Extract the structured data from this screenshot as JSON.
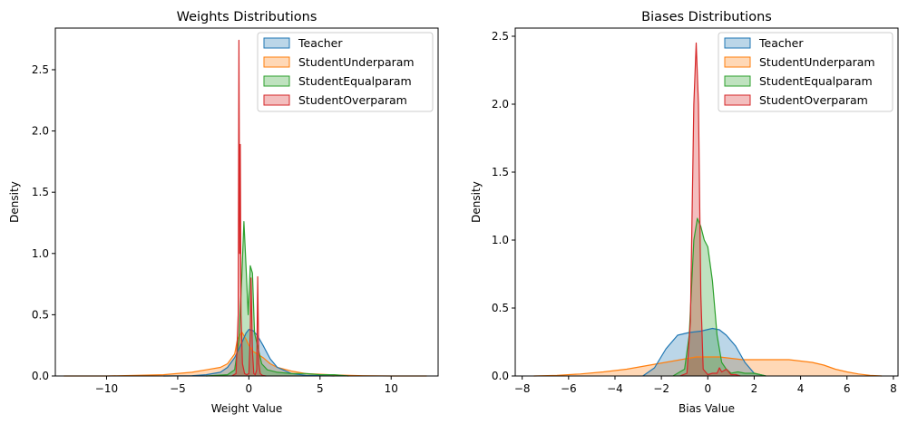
{
  "chart_data": [
    {
      "type": "area",
      "title": "Weights Distributions",
      "xlabel": "Weight Value",
      "ylabel": "Density",
      "xlim": [
        -13.6,
        13.3
      ],
      "ylim": [
        0,
        2.84
      ],
      "xticks": [
        -10,
        -5,
        0,
        5,
        10
      ],
      "yticks": [
        0.0,
        0.5,
        1.0,
        1.5,
        2.0,
        2.5
      ],
      "xtick_labels": [
        "−10",
        "−5",
        "0",
        "5",
        "10"
      ],
      "ytick_labels": [
        "0.0",
        "0.5",
        "1.0",
        "1.5",
        "2.0",
        "2.5"
      ],
      "grid": false,
      "legend_position": "top-right",
      "series": [
        {
          "name": "StudentUnderparam",
          "color": "#ff7f0e",
          "x": [
            -13.0,
            -10.0,
            -8.0,
            -6.0,
            -4.0,
            -3.0,
            -2.0,
            -1.5,
            -1.0,
            -0.8,
            -0.5,
            -0.2,
            0.0,
            0.3,
            0.6,
            1.0,
            1.5,
            2.0,
            3.0,
            4.0,
            6.0,
            8.0,
            10.0,
            12.5
          ],
          "y": [
            0.0,
            0.0,
            0.005,
            0.01,
            0.03,
            0.05,
            0.07,
            0.1,
            0.18,
            0.3,
            0.36,
            0.3,
            0.25,
            0.2,
            0.18,
            0.15,
            0.1,
            0.07,
            0.04,
            0.02,
            0.008,
            0.002,
            0.0,
            0.0
          ]
        },
        {
          "name": "Teacher",
          "color": "#1f77b4",
          "x": [
            -6.0,
            -4.0,
            -3.0,
            -2.0,
            -1.5,
            -1.0,
            -0.5,
            -0.2,
            0.0,
            0.3,
            0.6,
            1.0,
            1.5,
            2.0,
            3.0,
            4.0,
            6.0
          ],
          "y": [
            0.0,
            0.002,
            0.01,
            0.03,
            0.07,
            0.15,
            0.27,
            0.35,
            0.38,
            0.37,
            0.33,
            0.25,
            0.14,
            0.07,
            0.02,
            0.005,
            0.0
          ]
        },
        {
          "name": "StudentEqualparam",
          "color": "#2ca02c",
          "x": [
            -3.0,
            -1.5,
            -1.0,
            -0.7,
            -0.5,
            -0.35,
            -0.2,
            -0.05,
            0.1,
            0.25,
            0.4,
            0.6,
            0.9,
            1.3,
            2.0,
            3.0,
            4.0,
            5.0,
            6.0,
            7.0
          ],
          "y": [
            0.0,
            0.01,
            0.05,
            0.3,
            0.8,
            1.26,
            0.9,
            0.5,
            0.9,
            0.84,
            0.35,
            0.25,
            0.1,
            0.05,
            0.03,
            0.02,
            0.02,
            0.01,
            0.01,
            0.0
          ],
          "opacity": 0.3
        },
        {
          "name": "StudentOverparam",
          "color": "#d62728",
          "x": [
            -1.2,
            -0.9,
            -0.75,
            -0.7,
            -0.65,
            -0.6,
            -0.55,
            -0.45,
            -0.3,
            -0.15,
            0.0,
            0.1,
            0.15,
            0.25,
            0.35,
            0.45,
            0.55,
            0.62,
            0.7,
            0.8,
            0.95,
            1.2
          ],
          "y": [
            0.0,
            0.02,
            0.5,
            2.74,
            1.0,
            1.89,
            0.5,
            0.1,
            0.02,
            0.01,
            0.02,
            0.35,
            0.8,
            0.2,
            0.02,
            0.01,
            0.05,
            0.81,
            0.1,
            0.02,
            0.005,
            0.0
          ]
        }
      ]
    },
    {
      "type": "area",
      "title": "Biases Distributions",
      "xlabel": "Bias Value",
      "ylabel": "Density",
      "xlim": [
        -8.3,
        8.2
      ],
      "ylim": [
        0,
        2.56
      ],
      "xticks": [
        -8,
        -6,
        -4,
        -2,
        0,
        2,
        4,
        6,
        8
      ],
      "yticks": [
        0.0,
        0.5,
        1.0,
        1.5,
        2.0,
        2.5
      ],
      "xtick_labels": [
        "−8",
        "−6",
        "−4",
        "−2",
        "0",
        "2",
        "4",
        "6",
        "8"
      ],
      "ytick_labels": [
        "0.0",
        "0.5",
        "1.0",
        "1.5",
        "2.0",
        "2.5"
      ],
      "grid": false,
      "legend_position": "top-right",
      "series": [
        {
          "name": "StudentUnderparam",
          "color": "#ff7f0e",
          "x": [
            -7.5,
            -6.5,
            -5.5,
            -4.5,
            -3.5,
            -2.5,
            -1.5,
            -0.5,
            0.5,
            1.5,
            2.5,
            3.5,
            4.5,
            5.0,
            5.5,
            6.0,
            6.5,
            7.0,
            7.5
          ],
          "y": [
            0.0,
            0.005,
            0.015,
            0.03,
            0.05,
            0.08,
            0.11,
            0.14,
            0.14,
            0.12,
            0.12,
            0.12,
            0.1,
            0.08,
            0.05,
            0.03,
            0.015,
            0.005,
            0.0
          ]
        },
        {
          "name": "Teacher",
          "color": "#1f77b4",
          "x": [
            -2.8,
            -2.3,
            -1.8,
            -1.3,
            -0.8,
            -0.3,
            0.2,
            0.5,
            0.8,
            1.2,
            1.6,
            2.0,
            2.5
          ],
          "y": [
            0.0,
            0.06,
            0.2,
            0.3,
            0.32,
            0.33,
            0.35,
            0.34,
            0.3,
            0.22,
            0.1,
            0.02,
            0.0
          ]
        },
        {
          "name": "StudentEqualparam",
          "color": "#2ca02c",
          "x": [
            -1.5,
            -1.0,
            -0.8,
            -0.6,
            -0.45,
            -0.3,
            -0.15,
            0.0,
            0.2,
            0.4,
            0.6,
            0.8,
            1.0,
            1.3,
            1.6,
            2.0,
            2.5
          ],
          "y": [
            0.0,
            0.05,
            0.3,
            1.0,
            1.16,
            1.1,
            1.0,
            0.95,
            0.7,
            0.3,
            0.1,
            0.05,
            0.02,
            0.03,
            0.02,
            0.02,
            0.0
          ]
        },
        {
          "name": "StudentOverparam",
          "color": "#d62728",
          "x": [
            -1.2,
            -0.9,
            -0.75,
            -0.6,
            -0.5,
            -0.4,
            -0.3,
            -0.2,
            0.0,
            0.2,
            0.4,
            0.5,
            0.6,
            0.8,
            1.0,
            1.2,
            1.4
          ],
          "y": [
            0.0,
            0.02,
            0.4,
            2.0,
            2.45,
            2.0,
            0.6,
            0.05,
            0.01,
            0.02,
            0.02,
            0.06,
            0.03,
            0.05,
            0.01,
            0.01,
            0.0
          ]
        }
      ]
    }
  ]
}
